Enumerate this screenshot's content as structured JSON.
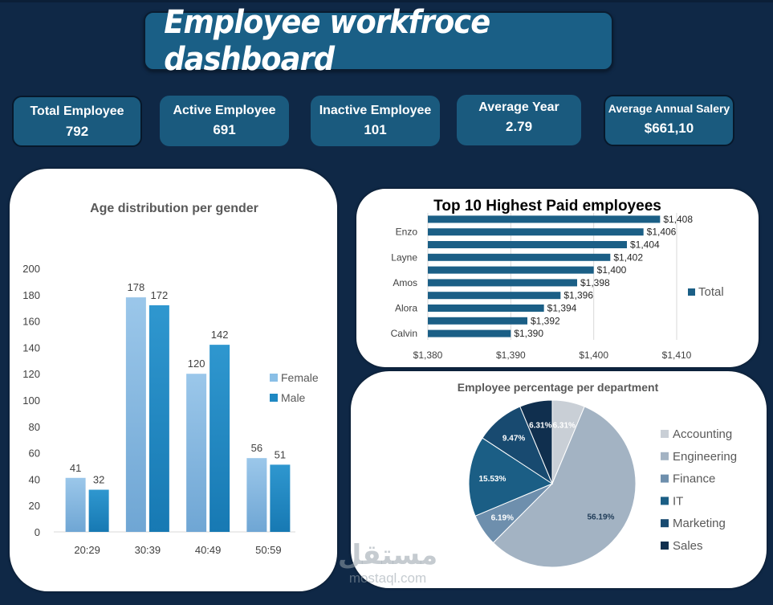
{
  "title": "Employee workfroce dashboard",
  "kpis": [
    {
      "label": "Total Employee",
      "value": "792"
    },
    {
      "label": "Active Employee",
      "value": "691"
    },
    {
      "label": "Inactive Employee",
      "value": "101"
    },
    {
      "label": "Average Year",
      "value": "2.79"
    },
    {
      "label": "Average Annual Salery",
      "value": "$661,10"
    }
  ],
  "colors": {
    "background": "#0f2846",
    "kpi": "#1a5a7e",
    "female": "#7fb4df",
    "male": "#1f88c2",
    "bar": "#1b5f86"
  },
  "watermark": {
    "arabic": "مستقل",
    "latin": "mostaql.com"
  },
  "chart_data": [
    {
      "type": "bar",
      "title": "Age distribution per gender",
      "categories": [
        "20:29",
        "30:39",
        "40:49",
        "50:59"
      ],
      "series": [
        {
          "name": "Female",
          "values": [
            41,
            178,
            120,
            56
          ]
        },
        {
          "name": "Male",
          "values": [
            32,
            172,
            142,
            51
          ]
        }
      ],
      "ylim": [
        0,
        200
      ],
      "yticks": [
        "0",
        "20",
        "40",
        "60",
        "80",
        "100",
        "120",
        "140",
        "160",
        "180",
        "200"
      ],
      "legend": "right",
      "grid": false
    },
    {
      "type": "bar",
      "orientation": "horizontal",
      "title": "Top 10 Highest Paid employees",
      "categories": [
        "",
        "Enzo",
        "",
        "Layne",
        "",
        "Amos",
        "",
        "Alora",
        "",
        "Calvin"
      ],
      "series": [
        {
          "name": "Total",
          "values": [
            1408,
            1406,
            1404,
            1402,
            1400,
            1398,
            1396,
            1394,
            1392,
            1390
          ]
        }
      ],
      "value_labels": [
        "$1,408",
        "$1,406",
        "$1,404",
        "$1,402",
        "$1,400",
        "$1,398",
        "$1,396",
        "$1,394",
        "$1,392",
        "$1,390"
      ],
      "xlim": [
        1380,
        1410
      ],
      "xticks": [
        "$1,380",
        "$1,390",
        "$1,400",
        "$1,410"
      ],
      "legend": "right",
      "grid": true
    },
    {
      "type": "pie",
      "title": "Employee percentage per department",
      "categories": [
        "Accounting",
        "Engineering",
        "Finance",
        "IT",
        "Marketing",
        "Sales"
      ],
      "values": [
        6.31,
        56.19,
        6.19,
        15.53,
        9.47,
        6.31
      ],
      "value_labels": [
        "6.31%",
        "56.19%",
        "6.19%",
        "15.53%",
        "9.47%",
        "6.31%"
      ],
      "colors": [
        "#c9cfd6",
        "#a3b3c3",
        "#6e8fad",
        "#1b5e85",
        "#184a70",
        "#102f4e"
      ],
      "legend": "right"
    }
  ]
}
